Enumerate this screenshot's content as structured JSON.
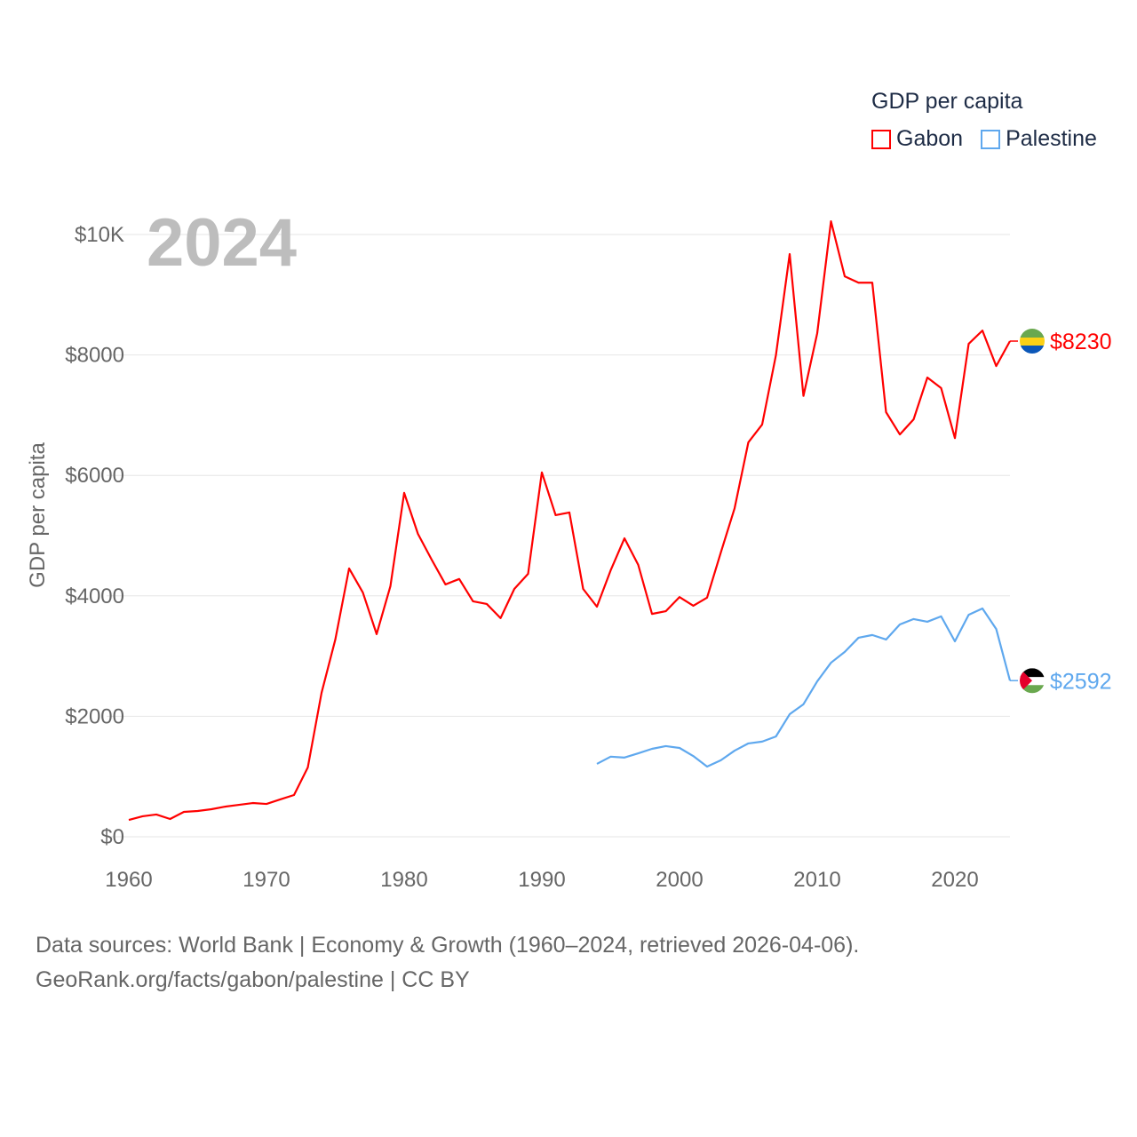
{
  "chart_data": {
    "type": "line",
    "title": "GDP per capita",
    "ylabel": "GDP per capita",
    "xlabel": "",
    "current_year": "2024",
    "xlim": [
      1960,
      2024
    ],
    "ylim": [
      0,
      10000
    ],
    "x_ticks": [
      1960,
      1970,
      1980,
      1990,
      2000,
      2010,
      2020
    ],
    "x_tick_labels": [
      "1960",
      "1970",
      "1980",
      "1990",
      "2000",
      "2010",
      "2020"
    ],
    "y_ticks": [
      0,
      2000,
      4000,
      6000,
      8000,
      10000
    ],
    "y_tick_labels": [
      "$0",
      "$2000",
      "$4000",
      "$6000",
      "$8000",
      "$10K"
    ],
    "grid": true,
    "legend_position": "top-right",
    "series": [
      {
        "name": "Gabon",
        "color": "#ff0000",
        "end_label": "$8230",
        "start_year": 1960,
        "values": [
          280,
          340,
          370,
          295,
          413,
          428,
          457,
          500,
          530,
          560,
          545,
          620,
          693,
          1150,
          2390,
          3275,
          4455,
          4055,
          3365,
          4160,
          5710,
          5030,
          4600,
          4190,
          4280,
          3910,
          3865,
          3630,
          4115,
          4365,
          6050,
          5340,
          5385,
          4115,
          3820,
          4425,
          4955,
          4515,
          3700,
          3745,
          3980,
          3835,
          3970,
          4720,
          5455,
          6550,
          6845,
          7995,
          9675,
          7320,
          8360,
          10220,
          9305,
          9200,
          9200,
          7050,
          6680,
          6930,
          7625,
          7450,
          6620,
          8185,
          8405,
          7815,
          8230
        ]
      },
      {
        "name": "Palestine",
        "color": "#5fa8ee",
        "end_label": "$2592",
        "start_year": 1994,
        "values": [
          1210,
          1330,
          1315,
          1385,
          1460,
          1505,
          1475,
          1340,
          1165,
          1270,
          1430,
          1550,
          1580,
          1665,
          2035,
          2200,
          2580,
          2890,
          3070,
          3305,
          3350,
          3275,
          3525,
          3615,
          3570,
          3660,
          3245,
          3685,
          3790,
          3450,
          2592
        ]
      }
    ]
  },
  "legend": {
    "title": "GDP per capita",
    "items": [
      "Gabon",
      "Palestine"
    ]
  },
  "source": {
    "line1": "Data sources: World Bank | Economy & Growth (1960–2024, retrieved 2026-04-06).",
    "line2": "GeoRank.org/facts/gabon/palestine | CC BY"
  }
}
